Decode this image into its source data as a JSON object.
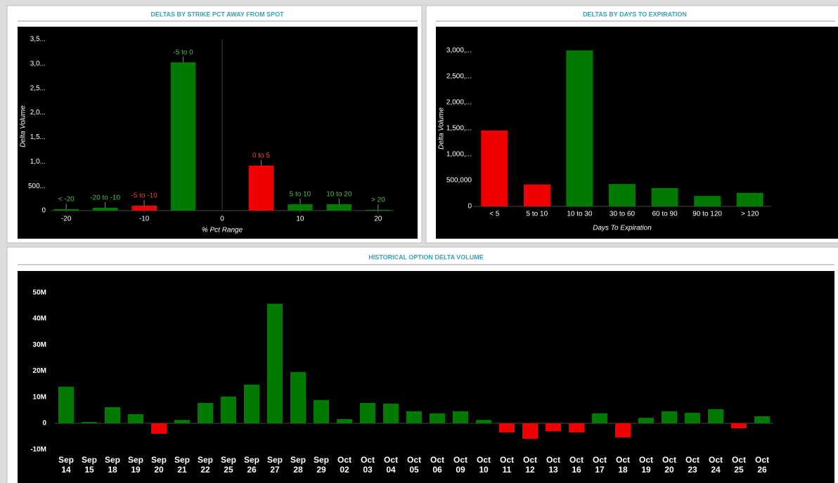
{
  "chart_data": [
    {
      "type": "bar",
      "title": "DELTAS BY STRIKE PCT AWAY FROM SPOT",
      "x_label": "% Pct Range",
      "y_label": "Delta Volume",
      "categories": [
        "< -20",
        "-20 to -10",
        "-5 to -10",
        "-5 to 0",
        "0 to 5",
        "5 to 10",
        "10 to 20",
        "> 20"
      ],
      "x": [
        -20,
        -15,
        -10,
        -5,
        5,
        10,
        15,
        20
      ],
      "values": [
        30000,
        60000,
        100000,
        3030000,
        920000,
        130000,
        130000,
        15000
      ],
      "colors": [
        "#007a00",
        "#007a00",
        "#ee0000",
        "#007a00",
        "#ee0000",
        "#007a00",
        "#007a00",
        "#007a00"
      ],
      "xlim": [
        -22,
        22
      ],
      "xticks": [
        -20,
        -10,
        0,
        10,
        20
      ],
      "ylim": [
        0,
        3500000
      ],
      "yticks": [
        0,
        {
          "value": 500000,
          "label": "500..."
        },
        {
          "value": 1000000,
          "label": "1,0..."
        },
        {
          "value": 1500000,
          "label": "1,5..."
        },
        {
          "value": 2000000,
          "label": "2,0..."
        },
        {
          "value": 2500000,
          "label": "2,5..."
        },
        {
          "value": 3000000,
          "label": "3,0..."
        },
        {
          "value": 3500000,
          "label": "3,5..."
        }
      ]
    },
    {
      "type": "bar",
      "title": "DELTAS BY DAYS TO EXPIRATION",
      "x_label": "Days To Expiration",
      "y_label": "Delta Volume",
      "categories": [
        "< 5",
        "5 to 10",
        "10 to 30",
        "30 to 60",
        "60 to 90",
        "90 to 120",
        "> 120"
      ],
      "values": [
        1460000,
        420000,
        3000000,
        430000,
        350000,
        200000,
        260000
      ],
      "colors": [
        "#ee0000",
        "#ee0000",
        "#007a00",
        "#007a00",
        "#007a00",
        "#007a00",
        "#007a00"
      ],
      "ylim": [
        0,
        3400000
      ],
      "yticks": [
        0,
        {
          "value": 500000,
          "label": "500,000"
        },
        {
          "value": 1000000,
          "label": "1,000,..."
        },
        {
          "value": 1500000,
          "label": "1,500,..."
        },
        {
          "value": 2000000,
          "label": "2,000,..."
        },
        {
          "value": 2500000,
          "label": "2,500,..."
        },
        {
          "value": 3000000,
          "label": "3,000,..."
        }
      ]
    },
    {
      "type": "bar",
      "title": "HISTORICAL OPTION DELTA VOLUME",
      "categories": [
        "Sep 14",
        "Sep 15",
        "Sep 18",
        "Sep 19",
        "Sep 20",
        "Sep 21",
        "Sep 22",
        "Sep 25",
        "Sep 26",
        "Sep 27",
        "Sep 28",
        "Sep 29",
        "Oct 02",
        "Oct 03",
        "Oct 04",
        "Oct 05",
        "Oct 06",
        "Oct 09",
        "Oct 10",
        "Oct 11",
        "Oct 12",
        "Oct 13",
        "Oct 16",
        "Oct 17",
        "Oct 18",
        "Oct 19",
        "Oct 20",
        "Oct 23",
        "Oct 24",
        "Oct 25",
        "Oct 26"
      ],
      "values": [
        14000000,
        500000,
        6200000,
        3500000,
        -4000000,
        1300000,
        7800000,
        10200000,
        14800000,
        45700000,
        19600000,
        8900000,
        1600000,
        7800000,
        7500000,
        4600000,
        3800000,
        4600000,
        1300000,
        -3500000,
        -5900000,
        -3000000,
        -3500000,
        3800000,
        -5400000,
        2100000,
        4600000,
        4000000,
        5400000,
        -1900000,
        2700000
      ],
      "positive_color": "#007a00",
      "negative_color": "#ee0000",
      "ylim": [
        -11000000,
        55000000
      ],
      "yticks": [
        {
          "value": -10000000,
          "label": "-10M"
        },
        0,
        {
          "value": 10000000,
          "label": "10M"
        },
        {
          "value": 20000000,
          "label": "20M"
        },
        {
          "value": 30000000,
          "label": "30M"
        },
        {
          "value": 40000000,
          "label": "40M"
        },
        {
          "value": 50000000,
          "label": "50M"
        }
      ]
    }
  ]
}
